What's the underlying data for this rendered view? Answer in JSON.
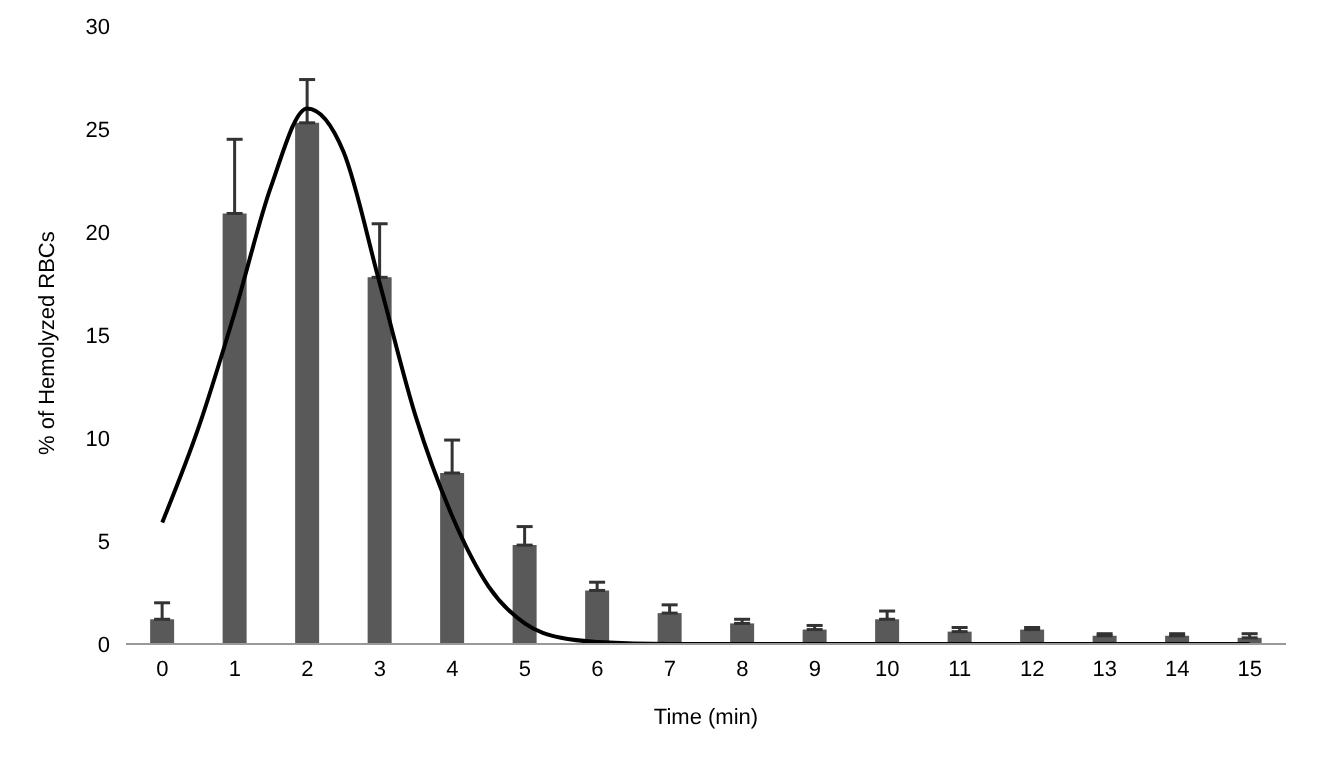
{
  "chart_data": {
    "type": "bar",
    "xlabel": "Time (min)",
    "ylabel": "% of Hemolyzed RBCs",
    "ylim": [
      0,
      30
    ],
    "yticks": [
      0,
      5,
      10,
      15,
      20,
      25,
      30
    ],
    "xlim": [
      -0.5,
      15.5
    ],
    "xticks": [
      0,
      1,
      2,
      3,
      4,
      5,
      6,
      7,
      8,
      9,
      10,
      11,
      12,
      13,
      14,
      15
    ],
    "grid": false,
    "legend": false,
    "series": [
      {
        "color": "#595959",
        "x": [
          0,
          1,
          2,
          3,
          4,
          5,
          6,
          7,
          8,
          9,
          10,
          11,
          12,
          13,
          14,
          15
        ],
        "values": [
          1.2,
          20.9,
          25.3,
          17.8,
          8.3,
          4.8,
          2.6,
          1.5,
          1.0,
          0.7,
          1.2,
          0.6,
          0.7,
          0.4,
          0.4,
          0.3
        ],
        "errors": [
          [
            1.2,
            2.0
          ],
          [
            20.9,
            24.5
          ],
          [
            25.3,
            27.4
          ],
          [
            17.8,
            20.4
          ],
          [
            8.3,
            9.9
          ],
          [
            4.8,
            5.7
          ],
          [
            2.6,
            3.0
          ],
          [
            1.5,
            1.9
          ],
          [
            1.0,
            1.2
          ],
          [
            0.7,
            0.9
          ],
          [
            1.2,
            1.6
          ],
          [
            0.6,
            0.8
          ],
          [
            0.7,
            0.8
          ],
          [
            0.4,
            0.5
          ],
          [
            0.4,
            0.5
          ],
          [
            0.3,
            0.5
          ]
        ]
      },
      {
        "type": "line",
        "color": "#000000",
        "x": [
          0,
          0.5,
          1,
          1.5,
          2,
          2.5,
          3,
          3.5,
          4,
          4.5,
          5,
          5.5,
          6,
          7,
          8,
          9,
          10,
          11,
          12,
          13,
          14,
          15
        ],
        "values": [
          5.9,
          10.5,
          16.1,
          22.2,
          26.0,
          23.9,
          17.5,
          11.0,
          6.2,
          2.8,
          1.0,
          0.3,
          0.1,
          0,
          0,
          0,
          0,
          0,
          0,
          0,
          0,
          0
        ]
      }
    ]
  }
}
